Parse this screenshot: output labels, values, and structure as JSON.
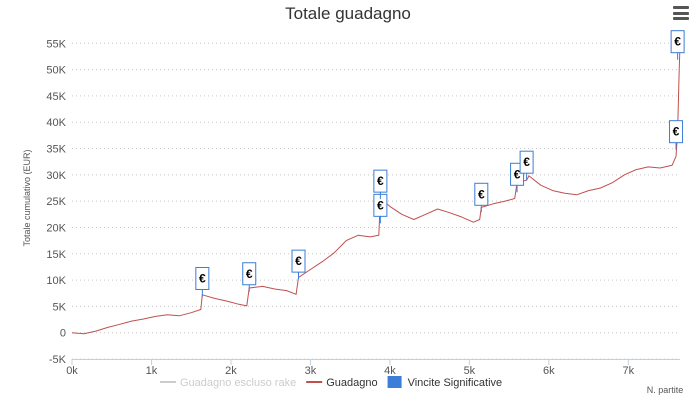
{
  "chart_data": {
    "type": "line",
    "title": "Totale guadagno",
    "ylabel": "Totale cumulativo (EUR)",
    "xlabel": "N. partite",
    "ylim": [
      -5000,
      56000
    ],
    "xlim": [
      0,
      7650
    ],
    "y_ticks": [
      -5000,
      0,
      5000,
      10000,
      15000,
      20000,
      25000,
      30000,
      35000,
      40000,
      45000,
      50000,
      55000
    ],
    "y_tick_labels": [
      "-5K",
      "0",
      "5K",
      "10K",
      "15K",
      "20K",
      "25K",
      "30K",
      "35K",
      "40K",
      "45K",
      "50K",
      "55K"
    ],
    "x_ticks": [
      0,
      1000,
      2000,
      3000,
      4000,
      5000,
      6000,
      7000
    ],
    "x_tick_labels": [
      "0k",
      "1k",
      "2k",
      "3k",
      "4k",
      "5k",
      "6k",
      "7k"
    ],
    "grid": "horizontal dotted",
    "legend_position": "bottom",
    "series": [
      {
        "name": "Guadagno escluso rake",
        "color": "#cccccc",
        "hidden": true,
        "x": [],
        "y": []
      },
      {
        "name": "Guadagno",
        "color": "#c0504d",
        "x": [
          0,
          150,
          300,
          450,
          600,
          750,
          900,
          1050,
          1200,
          1350,
          1500,
          1620,
          1640,
          1800,
          1950,
          2100,
          2200,
          2230,
          2400,
          2550,
          2700,
          2820,
          2850,
          3000,
          3150,
          3300,
          3450,
          3600,
          3750,
          3860,
          3880,
          4000,
          4150,
          4300,
          4450,
          4600,
          4750,
          4900,
          5050,
          5130,
          5150,
          5300,
          5450,
          5570,
          5600,
          5720,
          5750,
          5900,
          6050,
          6200,
          6350,
          6500,
          6650,
          6800,
          6950,
          7100,
          7250,
          7400,
          7550,
          7600,
          7620,
          7640,
          7650
        ],
        "y": [
          0,
          -200,
          300,
          1000,
          1600,
          2200,
          2600,
          3100,
          3400,
          3200,
          3800,
          4400,
          7200,
          6500,
          6000,
          5400,
          5100,
          8500,
          8800,
          8300,
          8000,
          7300,
          10500,
          12000,
          13500,
          15200,
          17500,
          18500,
          18200,
          18500,
          25500,
          24000,
          22500,
          21500,
          22500,
          23500,
          22800,
          22000,
          21000,
          21500,
          23800,
          24500,
          25000,
          25500,
          28500,
          29000,
          29800,
          28000,
          27000,
          26500,
          26200,
          27000,
          27500,
          28500,
          30000,
          31000,
          31500,
          31300,
          31800,
          33500,
          38000,
          50000,
          54500
        ]
      }
    ],
    "flags": {
      "name": "Vincite Significative",
      "color": "#3b7dd8",
      "symbol": "€",
      "points": [
        {
          "x": 1640,
          "y": 10300
        },
        {
          "x": 2230,
          "y": 11200
        },
        {
          "x": 2850,
          "y": 13600
        },
        {
          "x": 3880,
          "y": 24200
        },
        {
          "x": 3880,
          "y": 28800
        },
        {
          "x": 5150,
          "y": 26300
        },
        {
          "x": 5600,
          "y": 30100
        },
        {
          "x": 5720,
          "y": 32400
        },
        {
          "x": 7600,
          "y": 38200
        },
        {
          "x": 7620,
          "y": 55300
        }
      ]
    }
  }
}
